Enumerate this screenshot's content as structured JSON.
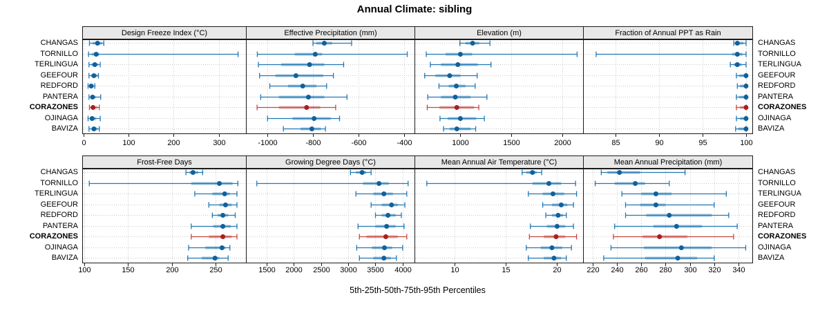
{
  "title": "Annual Climate: sibling",
  "xlabel": "5th-25th-50th-75th-95th Percentiles",
  "stations": [
    "CHANGAS",
    "TORNILLO",
    "TERLINGUA",
    "GEEFOUR",
    "REDFORD",
    "PANTERA",
    "CORAZONES",
    "OJINAGA",
    "BAVIZA"
  ],
  "highlight_station": "CORAZONES",
  "percentile_levels": [
    5,
    25,
    50,
    75,
    95
  ],
  "colors": {
    "normal": {
      "line": "#2077b4",
      "dot": "#11609a",
      "iqr_opacity": 0.45
    },
    "highlight": {
      "line": "#c64540",
      "dot": "#a91e22",
      "iqr_opacity": 0.45
    },
    "strip_bg": "#e8e8e8",
    "grid": "#c9c9c9",
    "border": "#1a1a1a",
    "panel_bg": "#ffffff"
  },
  "chart_data": {
    "type": "dot-whisker percentile trellis",
    "note": "each row value array = [p5,p25,p50,p75,p95]",
    "panels": [
      {
        "title": "Design Freeze Index (°C)",
        "row": 0,
        "col": 0,
        "ticks": [
          0,
          100,
          200,
          300
        ],
        "xlim": [
          -3,
          362
        ],
        "values": [
          [
            13,
            20,
            31,
            41,
            45
          ],
          [
            11,
            18,
            28,
            35,
            343
          ],
          [
            12,
            18,
            25,
            33,
            37
          ],
          [
            12,
            17,
            23,
            31,
            33
          ],
          [
            10,
            14,
            17,
            22,
            25
          ],
          [
            12,
            15,
            20,
            27,
            38
          ],
          [
            13,
            17,
            21,
            31,
            35
          ],
          [
            10,
            14,
            19,
            28,
            37
          ],
          [
            12,
            18,
            23,
            31,
            35
          ]
        ]
      },
      {
        "title": "Effective Precipitation (mm)",
        "row": 0,
        "col": 1,
        "ticks": [
          -1000,
          -800,
          -600,
          -400
        ],
        "xlim": [
          -1095,
          -350
        ],
        "values": [
          [
            -800,
            -785,
            -750,
            -715,
            -630
          ],
          [
            -1045,
            -880,
            -790,
            -760,
            -385
          ],
          [
            -1040,
            -940,
            -815,
            -750,
            -665
          ],
          [
            -1035,
            -965,
            -875,
            -755,
            -710
          ],
          [
            -990,
            -910,
            -845,
            -785,
            -740
          ],
          [
            -1030,
            -950,
            -820,
            -750,
            -650
          ],
          [
            -1046,
            -950,
            -828,
            -768,
            -700
          ],
          [
            -1000,
            -890,
            -795,
            -722,
            -683
          ],
          [
            -930,
            -855,
            -805,
            -765,
            -745
          ]
        ]
      },
      {
        "title": "Elevation (m)",
        "row": 0,
        "col": 2,
        "ticks": [
          1000,
          1500,
          2000
        ],
        "xlim": [
          550,
          2210
        ],
        "values": [
          [
            995,
            1050,
            1120,
            1185,
            1290
          ],
          [
            665,
            855,
            1000,
            1115,
            2145
          ],
          [
            705,
            810,
            975,
            1170,
            1300
          ],
          [
            650,
            755,
            895,
            1000,
            1165
          ],
          [
            790,
            885,
            960,
            1050,
            1145
          ],
          [
            680,
            810,
            950,
            1100,
            1260
          ],
          [
            675,
            795,
            965,
            1135,
            1180
          ],
          [
            800,
            875,
            1000,
            1155,
            1235
          ],
          [
            835,
            895,
            965,
            1100,
            1150
          ]
        ]
      },
      {
        "title": "Fraction of Annual PPT as Rain",
        "row": 0,
        "col": 3,
        "ticks": [
          85,
          90,
          95,
          100
        ],
        "xlim": [
          81.3,
          100.8
        ],
        "values": [
          [
            98.6,
            98.8,
            99.0,
            99.7,
            100
          ],
          [
            82.8,
            98.4,
            99.0,
            99.6,
            100
          ],
          [
            98.2,
            98.6,
            99.0,
            99.5,
            100
          ],
          [
            98.9,
            99.2,
            100,
            100,
            100
          ],
          [
            99.0,
            99.3,
            100,
            100,
            100
          ],
          [
            98.9,
            99.2,
            100,
            100,
            100
          ],
          [
            98.9,
            99.3,
            100,
            100,
            100
          ],
          [
            98.9,
            99.3,
            100,
            100,
            100
          ],
          [
            98.8,
            99.1,
            100,
            100,
            100
          ]
        ]
      },
      {
        "title": "Frost-Free Days",
        "row": 1,
        "col": 0,
        "ticks": [
          100,
          150,
          200,
          250
        ],
        "xlim": [
          98,
          285
        ],
        "values": [
          [
            216,
            220,
            224,
            230,
            235
          ],
          [
            106,
            222,
            254,
            269,
            275
          ],
          [
            226,
            246,
            260,
            266,
            274
          ],
          [
            242,
            254,
            261,
            268,
            274
          ],
          [
            246,
            252,
            258,
            264,
            272
          ],
          [
            222,
            247,
            258,
            267,
            274
          ],
          [
            222,
            242,
            258,
            268,
            274
          ],
          [
            219,
            238,
            257,
            261,
            266
          ],
          [
            218,
            234,
            249,
            254,
            264
          ]
        ]
      },
      {
        "title": "Growing Degree Days (°C)",
        "row": 1,
        "col": 1,
        "ticks": [
          1500,
          2000,
          2500,
          3000,
          3500,
          4000
        ],
        "xlim": [
          1120,
          4230
        ],
        "values": [
          [
            3040,
            3140,
            3255,
            3330,
            3420
          ],
          [
            1320,
            3270,
            3565,
            3745,
            4100
          ],
          [
            3140,
            3460,
            3655,
            3820,
            4075
          ],
          [
            3420,
            3615,
            3795,
            3910,
            4040
          ],
          [
            3500,
            3615,
            3730,
            3870,
            3975
          ],
          [
            3180,
            3500,
            3705,
            3870,
            4025
          ],
          [
            3205,
            3335,
            3690,
            3910,
            4075
          ],
          [
            3155,
            3435,
            3665,
            3805,
            4000
          ],
          [
            3205,
            3460,
            3655,
            3780,
            3885
          ]
        ]
      },
      {
        "title": "Mean Annual Air Temperature (°C)",
        "row": 1,
        "col": 2,
        "ticks": [
          10,
          15,
          20
        ],
        "xlim": [
          6.1,
          22.6
        ],
        "values": [
          [
            16.6,
            17.0,
            17.6,
            18.0,
            18.5
          ],
          [
            7.3,
            17.6,
            19.2,
            20.4,
            21.8
          ],
          [
            17.2,
            18.6,
            19.6,
            20.7,
            21.9
          ],
          [
            18.6,
            19.5,
            20.4,
            21.0,
            21.6
          ],
          [
            18.9,
            19.5,
            20.1,
            20.6,
            20.9
          ],
          [
            17.4,
            19.0,
            20.0,
            20.8,
            21.6
          ],
          [
            17.3,
            18.7,
            19.9,
            20.8,
            21.9
          ],
          [
            17.0,
            18.4,
            19.5,
            20.5,
            21.4
          ],
          [
            17.2,
            18.7,
            19.7,
            20.4,
            20.9
          ]
        ]
      },
      {
        "title": "Mean Annual Precipitation (mm)",
        "row": 1,
        "col": 3,
        "ticks": [
          220,
          240,
          260,
          280,
          300,
          320,
          340
        ],
        "xlim": [
          212,
          352
        ],
        "values": [
          [
            227,
            232,
            242,
            259,
            296
          ],
          [
            222,
            238,
            255,
            263,
            283
          ],
          [
            244,
            260,
            272,
            285,
            330
          ],
          [
            247,
            259,
            272,
            280,
            320
          ],
          [
            247,
            264,
            283,
            318,
            332
          ],
          [
            238,
            270,
            289,
            310,
            339
          ],
          [
            237,
            261,
            275,
            298,
            336
          ],
          [
            235,
            262,
            293,
            318,
            346
          ],
          [
            229,
            263,
            290,
            306,
            320
          ]
        ]
      }
    ]
  }
}
